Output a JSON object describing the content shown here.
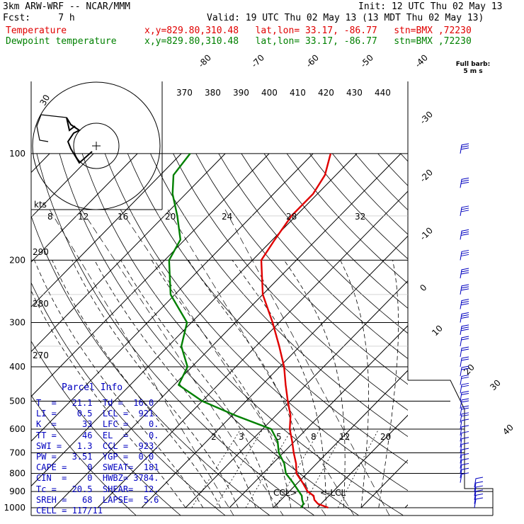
{
  "header": {
    "line1_left": "3km ARW-WRF -- NCAR/MMM",
    "line1_right": "Init: 12 UTC Thu 02 May 13",
    "line2_left": "Fcst:     7 h",
    "line2_right": "Valid: 19 UTC Thu 02 May 13 (13 MDT Thu 02 May 13)",
    "temp_label": "Temperature",
    "dew_label": "Dewpoint temperature",
    "temp_info": "x,y=829.80,310.48   lat,lon= 33.17, -86.77   stn=BMX ,72230",
    "dew_info": "x,y=829.80,310.48   lat,lon= 33.17, -86.77   stn=BMX ,72230",
    "barb_key_1": "Full barb:",
    "barb_key_2": "5 m s"
  },
  "colors": {
    "temperature": "#e00000",
    "dewpoint": "#008000",
    "barbs": "#0000c0",
    "parcel_title": "#0000c0"
  },
  "chart_data": {
    "type": "line",
    "title": "",
    "y_axis": "pressure (hPa), log scale",
    "pressure_ticks": [
      100,
      200,
      300,
      400,
      500,
      600,
      700,
      800,
      900,
      1000
    ],
    "isotherm_labels": [
      "-80",
      "-70",
      "-60",
      "-50",
      "-40",
      "-30",
      "-20",
      "-10",
      "0",
      "10",
      "20",
      "30",
      "40"
    ],
    "theta_labels": [
      "370",
      "380",
      "390",
      "400",
      "410",
      "420",
      "430",
      "440"
    ],
    "mixing_ratio_labels": [
      "2",
      "3",
      "5",
      "8",
      "12",
      "20"
    ],
    "hodograph_speed_labels": [
      "8",
      "12",
      "16",
      "20",
      "24",
      "28",
      "32"
    ],
    "hodograph_unit": "kts",
    "hodograph_ring_label": "30",
    "side_theta_labels": [
      "290",
      "280",
      "270"
    ],
    "series": [
      {
        "name": "Temperature",
        "points": [
          {
            "p": 1000,
            "t": 22.5
          },
          {
            "p": 975,
            "t": 19.3
          },
          {
            "p": 950,
            "t": 17.6
          },
          {
            "p": 925,
            "t": 16.5
          },
          {
            "p": 900,
            "t": 14.2
          },
          {
            "p": 850,
            "t": 11.1
          },
          {
            "p": 800,
            "t": 7.6
          },
          {
            "p": 750,
            "t": 5.3
          },
          {
            "p": 700,
            "t": 2.4
          },
          {
            "p": 650,
            "t": -0.5
          },
          {
            "p": 600,
            "t": -3.8
          },
          {
            "p": 550,
            "t": -6.6
          },
          {
            "p": 500,
            "t": -10.5
          },
          {
            "p": 450,
            "t": -14.6
          },
          {
            "p": 400,
            "t": -19.0
          },
          {
            "p": 350,
            "t": -24.7
          },
          {
            "p": 300,
            "t": -31.5
          },
          {
            "p": 250,
            "t": -40.0
          },
          {
            "p": 200,
            "t": -48.0
          },
          {
            "p": 175,
            "t": -49.5
          },
          {
            "p": 150,
            "t": -51.0
          },
          {
            "p": 130,
            "t": -51.0
          },
          {
            "p": 115,
            "t": -52.5
          },
          {
            "p": 100,
            "t": -56.0
          }
        ]
      },
      {
        "name": "Dewpoint temperature",
        "points": [
          {
            "p": 1000,
            "t": 16.3
          },
          {
            "p": 975,
            "t": 16.0
          },
          {
            "p": 950,
            "t": 14.8
          },
          {
            "p": 925,
            "t": 13.8
          },
          {
            "p": 900,
            "t": 12.2
          },
          {
            "p": 850,
            "t": 8.9
          },
          {
            "p": 800,
            "t": 5.2
          },
          {
            "p": 750,
            "t": 2.6
          },
          {
            "p": 700,
            "t": -1.0
          },
          {
            "p": 650,
            "t": -3.8
          },
          {
            "p": 600,
            "t": -8.0
          },
          {
            "p": 550,
            "t": -19.0
          },
          {
            "p": 500,
            "t": -30.0
          },
          {
            "p": 450,
            "t": -39.0
          },
          {
            "p": 400,
            "t": -41.0
          },
          {
            "p": 350,
            "t": -47.0
          },
          {
            "p": 300,
            "t": -51.0
          },
          {
            "p": 250,
            "t": -61.0
          },
          {
            "p": 200,
            "t": -69.0
          },
          {
            "p": 175,
            "t": -71.0
          },
          {
            "p": 150,
            "t": -77.0
          },
          {
            "p": 130,
            "t": -83.0
          },
          {
            "p": 115,
            "t": -87.0
          },
          {
            "p": 100,
            "t": -88.0
          }
        ]
      }
    ],
    "annotations": [
      "CCL",
      "LCL"
    ]
  },
  "parcel_info": {
    "title": "Parcel Info",
    "rows": [
      "T  =   21.1  Td =  16.0",
      "LI =    0.5  LCL =  921.",
      "K  =     33  LFC =    0.",
      "TT =     46  EL  =    0.",
      "SWI =   1.3  CCL =  923.",
      "PW =   3.51  YGP =  0.0",
      "CAPE =    0  SWEAT=  181",
      "CIN  =    0  HWBZ= 3784.",
      "Tc =   20.5  SHEAR=  12.",
      "SREH =   68  LAPSE=  5.6",
      "CELL = 117/11"
    ]
  }
}
